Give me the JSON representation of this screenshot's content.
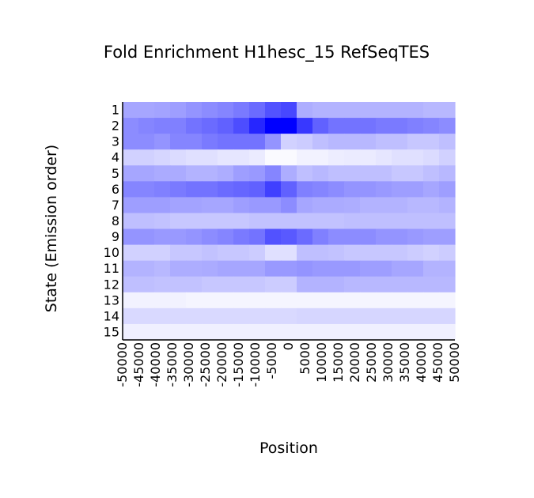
{
  "chart_data": {
    "type": "heatmap",
    "title": "Fold Enrichment H1hesc_15 RefSeqTES",
    "xlabel": "Position",
    "ylabel": "State (Emission order)",
    "x_tick_labels": [
      "-50000",
      "-45000",
      "-40000",
      "-35000",
      "-30000",
      "-25000",
      "-20000",
      "-15000",
      "-10000",
      "-5000",
      "0",
      "5000",
      "10000",
      "15000",
      "20000",
      "25000",
      "30000",
      "35000",
      "40000",
      "45000",
      "50000"
    ],
    "y_tick_labels": [
      "1",
      "2",
      "3",
      "4",
      "5",
      "6",
      "7",
      "8",
      "9",
      "10",
      "11",
      "12",
      "13",
      "14",
      "15"
    ],
    "color_scale": {
      "low": "#ffffff",
      "high": "#0000ff"
    },
    "values_note_scale": "relative intensity 0 (white) to 1 (blue)",
    "values": [
      [
        0.35,
        0.35,
        0.36,
        0.38,
        0.42,
        0.45,
        0.48,
        0.52,
        0.58,
        0.68,
        0.72,
        0.32,
        0.3,
        0.3,
        0.3,
        0.3,
        0.3,
        0.3,
        0.3,
        0.28,
        0.28
      ],
      [
        0.45,
        0.48,
        0.5,
        0.5,
        0.55,
        0.58,
        0.62,
        0.7,
        0.85,
        1.0,
        1.0,
        0.78,
        0.62,
        0.55,
        0.55,
        0.55,
        0.52,
        0.52,
        0.5,
        0.48,
        0.45
      ],
      [
        0.45,
        0.45,
        0.42,
        0.48,
        0.48,
        0.52,
        0.55,
        0.55,
        0.55,
        0.42,
        0.18,
        0.2,
        0.25,
        0.28,
        0.28,
        0.28,
        0.25,
        0.25,
        0.22,
        0.22,
        0.25
      ],
      [
        0.18,
        0.18,
        0.16,
        0.14,
        0.12,
        0.12,
        0.1,
        0.1,
        0.08,
        0.02,
        0.02,
        0.05,
        0.05,
        0.07,
        0.08,
        0.08,
        0.1,
        0.12,
        0.12,
        0.14,
        0.18
      ],
      [
        0.35,
        0.35,
        0.33,
        0.33,
        0.3,
        0.3,
        0.32,
        0.38,
        0.4,
        0.48,
        0.32,
        0.25,
        0.28,
        0.25,
        0.25,
        0.25,
        0.25,
        0.22,
        0.22,
        0.25,
        0.28
      ],
      [
        0.48,
        0.48,
        0.5,
        0.52,
        0.55,
        0.55,
        0.58,
        0.6,
        0.62,
        0.75,
        0.62,
        0.5,
        0.48,
        0.45,
        0.42,
        0.42,
        0.4,
        0.38,
        0.38,
        0.35,
        0.38
      ],
      [
        0.38,
        0.38,
        0.38,
        0.36,
        0.36,
        0.35,
        0.35,
        0.38,
        0.4,
        0.4,
        0.45,
        0.35,
        0.33,
        0.33,
        0.32,
        0.3,
        0.3,
        0.3,
        0.28,
        0.28,
        0.3
      ],
      [
        0.25,
        0.25,
        0.24,
        0.22,
        0.22,
        0.22,
        0.22,
        0.22,
        0.24,
        0.24,
        0.24,
        0.24,
        0.24,
        0.24,
        0.25,
        0.25,
        0.25,
        0.25,
        0.25,
        0.25,
        0.25
      ],
      [
        0.42,
        0.42,
        0.4,
        0.4,
        0.42,
        0.45,
        0.48,
        0.52,
        0.55,
        0.68,
        0.65,
        0.58,
        0.5,
        0.45,
        0.45,
        0.45,
        0.42,
        0.42,
        0.4,
        0.38,
        0.38
      ],
      [
        0.18,
        0.18,
        0.18,
        0.22,
        0.22,
        0.24,
        0.22,
        0.22,
        0.2,
        0.12,
        0.12,
        0.25,
        0.25,
        0.24,
        0.22,
        0.22,
        0.22,
        0.22,
        0.2,
        0.18,
        0.2
      ],
      [
        0.3,
        0.3,
        0.28,
        0.32,
        0.32,
        0.33,
        0.35,
        0.35,
        0.35,
        0.4,
        0.4,
        0.42,
        0.4,
        0.4,
        0.4,
        0.38,
        0.38,
        0.35,
        0.35,
        0.3,
        0.3
      ],
      [
        0.25,
        0.25,
        0.24,
        0.24,
        0.24,
        0.22,
        0.22,
        0.22,
        0.22,
        0.2,
        0.2,
        0.3,
        0.3,
        0.3,
        0.28,
        0.28,
        0.28,
        0.28,
        0.28,
        0.28,
        0.28
      ],
      [
        0.05,
        0.05,
        0.05,
        0.05,
        0.04,
        0.04,
        0.04,
        0.04,
        0.04,
        0.04,
        0.04,
        0.04,
        0.04,
        0.04,
        0.04,
        0.04,
        0.04,
        0.04,
        0.04,
        0.04,
        0.04
      ],
      [
        0.15,
        0.15,
        0.15,
        0.15,
        0.15,
        0.15,
        0.15,
        0.15,
        0.15,
        0.15,
        0.15,
        0.16,
        0.16,
        0.16,
        0.16,
        0.16,
        0.16,
        0.16,
        0.16,
        0.16,
        0.16
      ],
      [
        0.06,
        0.06,
        0.06,
        0.06,
        0.06,
        0.06,
        0.06,
        0.06,
        0.06,
        0.06,
        0.06,
        0.06,
        0.06,
        0.06,
        0.06,
        0.06,
        0.06,
        0.06,
        0.06,
        0.06,
        0.06
      ]
    ]
  }
}
